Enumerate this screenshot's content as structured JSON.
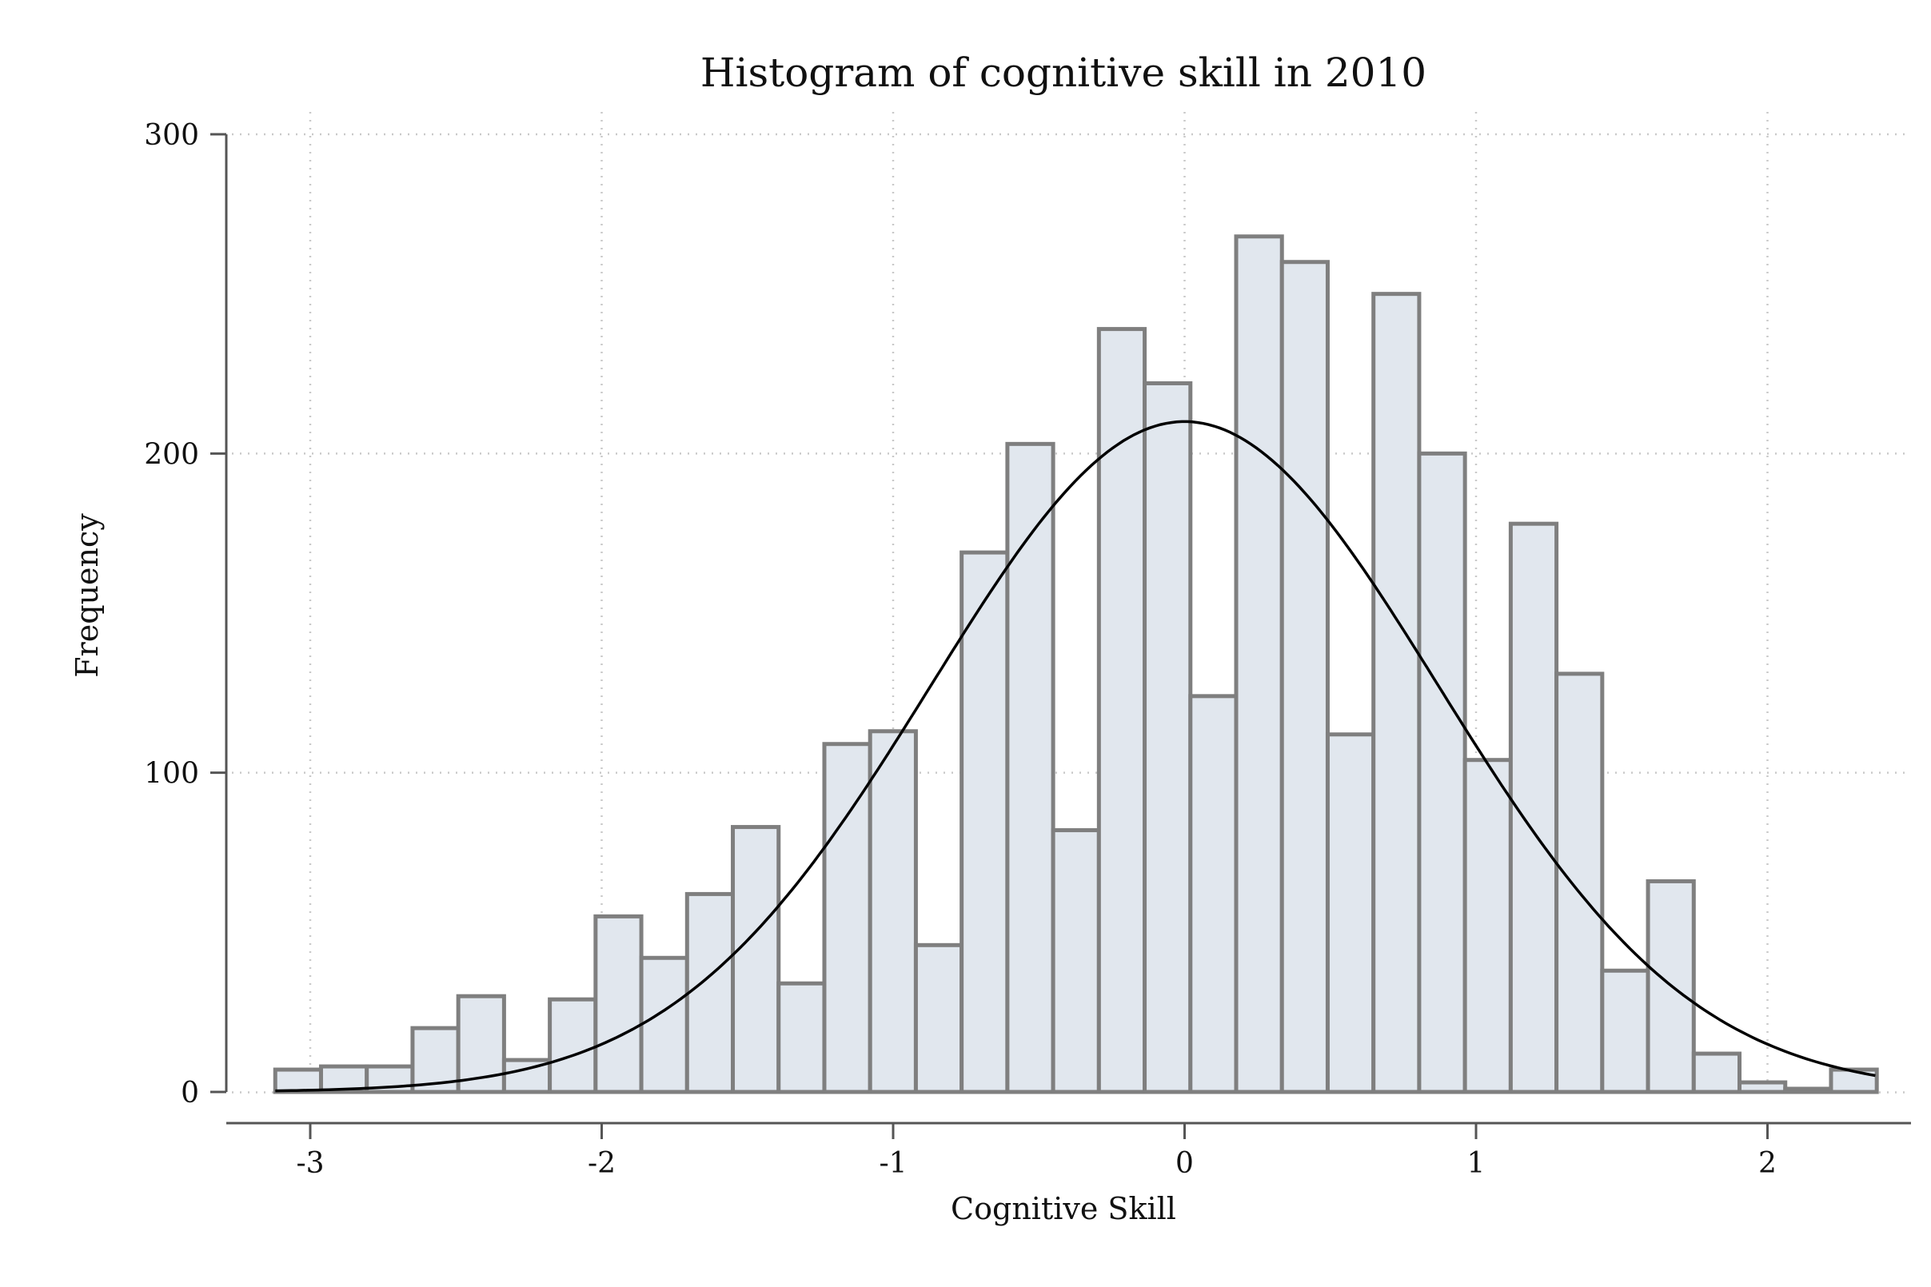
{
  "chart_data": {
    "type": "bar",
    "title": "Histogram of cognitive skill in 2010",
    "xlabel": "Cognitive Skill",
    "ylabel": "Frequency",
    "xlim": [
      -3.12,
      2.37
    ],
    "ylim": [
      0,
      300
    ],
    "xticks": [
      -3,
      -2,
      -1,
      0,
      1,
      2
    ],
    "yticks": [
      0,
      100,
      200,
      300
    ],
    "grid": true,
    "bin_width": 0.157,
    "bins_start": -3.12,
    "values": [
      7,
      8,
      8,
      20,
      30,
      10,
      29,
      55,
      42,
      62,
      83,
      34,
      109,
      113,
      46,
      169,
      203,
      82,
      239,
      222,
      124,
      268,
      260,
      112,
      250,
      200,
      104,
      178,
      131,
      38,
      66,
      12,
      3,
      1,
      7
    ],
    "normal_curve": {
      "mean": 0.0,
      "sd": 0.87,
      "peak": 210
    },
    "colors": {
      "bar_fill": "#e1e7ee",
      "bar_stroke": "#7f7f7f",
      "curve": "#000000"
    }
  }
}
